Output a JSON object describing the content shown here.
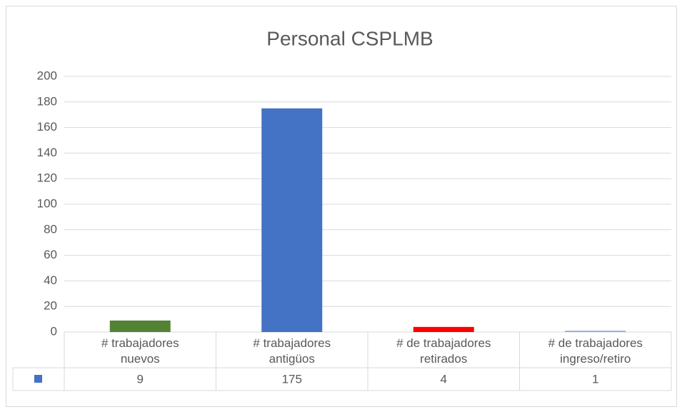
{
  "chart_data": {
    "type": "bar",
    "title": "Personal CSPLMB",
    "categories": [
      "# trabajadores nuevos",
      "# trabajadores antigüos",
      "# de trabajadores retirados",
      "# de trabajadores ingreso/retiro"
    ],
    "values": [
      9,
      175,
      4,
      1
    ],
    "colors": [
      "#548235",
      "#4472c4",
      "#ff0000",
      "#8faadc"
    ],
    "legend_color": "#4472c4",
    "ylim": [
      0,
      200
    ],
    "yticks": [
      0,
      20,
      40,
      60,
      80,
      100,
      120,
      140,
      160,
      180,
      200
    ],
    "grid": true
  }
}
